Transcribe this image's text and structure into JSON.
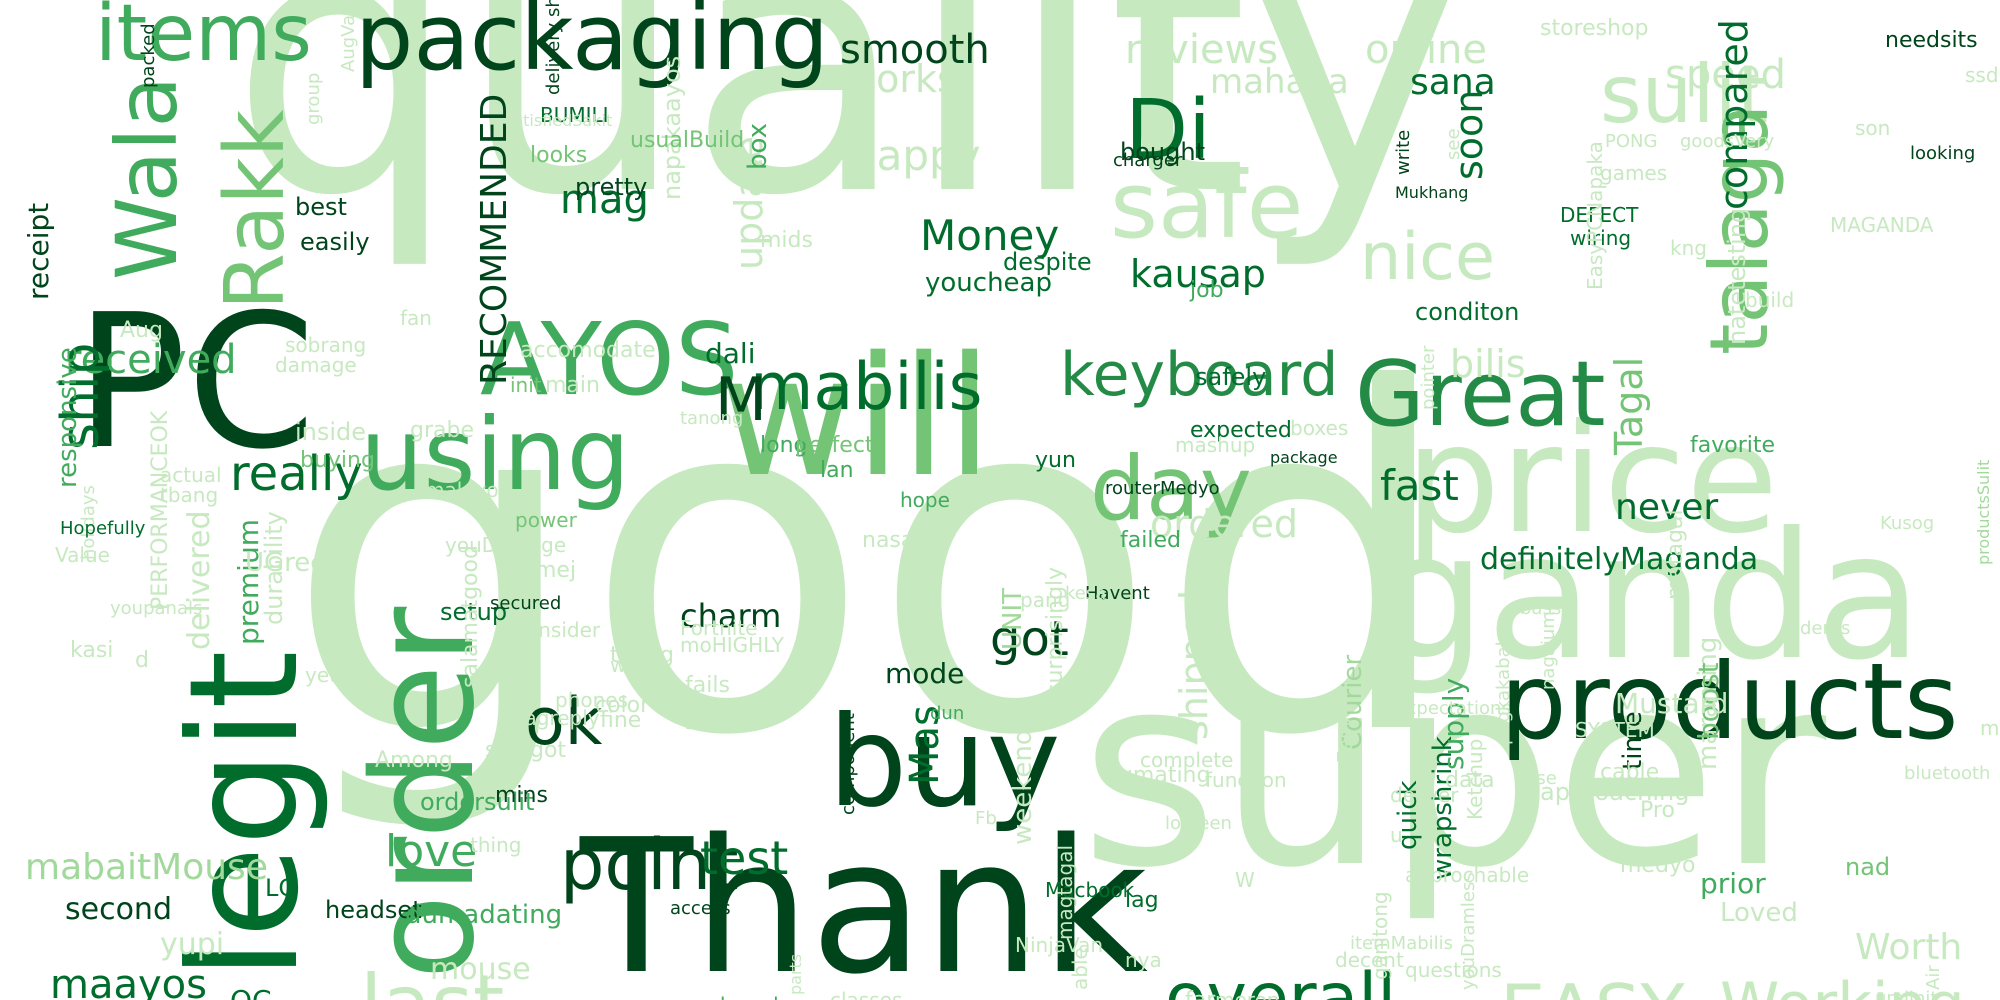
{
  "palette": {
    "background": "#ffffff",
    "shades": [
      "#00441b",
      "#006d2c",
      "#238b45",
      "#41ab5d",
      "#74c476",
      "#a1d99b",
      "#c7e9c0",
      "#e5f5e0"
    ]
  },
  "words": [
    {
      "text": "quality",
      "rotated": false
    },
    {
      "text": "good",
      "rotated": false
    },
    {
      "text": "super",
      "rotated": false
    },
    {
      "text": "Thank",
      "rotated": false
    },
    {
      "text": "will",
      "rotated": false
    },
    {
      "text": "price",
      "rotated": false
    },
    {
      "text": "ganda",
      "rotated": false
    },
    {
      "text": "PC",
      "rotated": false
    },
    {
      "text": "legit",
      "rotated": true
    },
    {
      "text": "order",
      "rotated": true
    },
    {
      "text": "products",
      "rotated": false
    },
    {
      "text": "buy",
      "rotated": false
    },
    {
      "text": "packaging",
      "rotated": false
    },
    {
      "text": "items",
      "rotated": false
    },
    {
      "text": "Wala",
      "rotated": true
    },
    {
      "text": "Rakk",
      "rotated": true
    },
    {
      "text": "using",
      "rotated": false
    },
    {
      "text": "AYOS",
      "rotated": false
    },
    {
      "text": "Great",
      "rotated": false
    },
    {
      "text": "day",
      "rotated": false
    },
    {
      "text": "safe",
      "rotated": false
    },
    {
      "text": "sulit",
      "rotated": false
    },
    {
      "text": "talaga",
      "rotated": true
    },
    {
      "text": "Di",
      "rotated": false
    },
    {
      "text": "point",
      "rotated": false
    },
    {
      "text": "ok",
      "rotated": false
    },
    {
      "text": "mabilis",
      "rotated": false
    },
    {
      "text": "keyboard",
      "rotated": false
    },
    {
      "text": "overall",
      "rotated": false
    },
    {
      "text": "EASY",
      "rotated": false
    },
    {
      "text": "Working",
      "rotated": false
    },
    {
      "text": "nice",
      "rotated": false
    },
    {
      "text": "last",
      "rotated": false
    },
    {
      "text": "smooth",
      "rotated": false
    },
    {
      "text": "reviews",
      "rotated": false
    },
    {
      "text": "online",
      "rotated": false
    },
    {
      "text": "speed",
      "rotated": false
    },
    {
      "text": "mahaba",
      "rotated": false
    },
    {
      "text": "sana",
      "rotated": false
    },
    {
      "text": "works",
      "rotated": false
    },
    {
      "text": "happy",
      "rotated": false
    },
    {
      "text": "Money",
      "rotated": false
    },
    {
      "text": "kausap",
      "rotated": false
    },
    {
      "text": "really",
      "rotated": false
    },
    {
      "text": "received",
      "rotated": false
    },
    {
      "text": "ship",
      "rotated": true
    },
    {
      "text": "RECOMMENDED",
      "rotated": true
    },
    {
      "text": "M",
      "rotated": false
    },
    {
      "text": "mag",
      "rotated": false
    },
    {
      "text": "test",
      "rotated": false
    },
    {
      "text": "love",
      "rotated": false
    },
    {
      "text": "maayos",
      "rotated": false
    },
    {
      "text": "mouse",
      "rotated": false
    },
    {
      "text": "Mas",
      "rotated": true
    },
    {
      "text": "got",
      "rotated": false
    },
    {
      "text": "charm",
      "rotated": false
    },
    {
      "text": "fast",
      "rotated": false
    },
    {
      "text": "bilis",
      "rotated": false
    },
    {
      "text": "never",
      "rotated": false
    },
    {
      "text": "Tagal",
      "rotated": true
    },
    {
      "text": "compared",
      "rotated": true
    },
    {
      "text": "soon",
      "rotated": true
    },
    {
      "text": "update",
      "rotated": true
    },
    {
      "text": "shipped",
      "rotated": true
    },
    {
      "text": "ordered",
      "rotated": false
    },
    {
      "text": "definitelyMaganda",
      "rotated": false
    },
    {
      "text": "Worth",
      "rotated": false
    },
    {
      "text": "time",
      "rotated": true
    },
    {
      "text": "mabaitMouse",
      "rotated": false
    },
    {
      "text": "receipt",
      "rotated": true
    },
    {
      "text": "delivered",
      "rotated": true
    },
    {
      "text": "premium",
      "rotated": true
    },
    {
      "text": "responsive",
      "rotated": true
    },
    {
      "text": "second",
      "rotated": false
    },
    {
      "text": "yupi",
      "rotated": false
    },
    {
      "text": "LG",
      "rotated": false
    },
    {
      "text": "headset",
      "rotated": false
    },
    {
      "text": "QC",
      "rotated": false
    },
    {
      "text": "dumadating",
      "rotated": false
    },
    {
      "text": "ordersulit",
      "rotated": false
    },
    {
      "text": "setup",
      "rotated": false
    },
    {
      "text": "mode",
      "rotated": false
    },
    {
      "text": "weekend",
      "rotated": true
    },
    {
      "text": "job",
      "rotated": false
    },
    {
      "text": "safely",
      "rotated": false
    },
    {
      "text": "expected",
      "rotated": false
    },
    {
      "text": "conditon",
      "rotated": false
    },
    {
      "text": "bought",
      "rotated": false
    },
    {
      "text": "youcheap",
      "rotated": false
    },
    {
      "text": "despite",
      "rotated": false
    },
    {
      "text": "box",
      "rotated": true
    },
    {
      "text": "pretty",
      "rotated": false
    },
    {
      "text": "best",
      "rotated": false
    },
    {
      "text": "easily",
      "rotated": false
    },
    {
      "text": "BUMILI",
      "rotated": false
    },
    {
      "text": "dali",
      "rotated": false
    },
    {
      "text": "long",
      "rotated": false
    },
    {
      "text": "perfect",
      "rotated": false
    },
    {
      "text": "buying",
      "rotated": false
    },
    {
      "text": "lan",
      "rotated": false
    },
    {
      "text": "yun",
      "rotated": false
    },
    {
      "text": "hope",
      "rotated": false
    },
    {
      "text": "power",
      "rotated": false
    },
    {
      "text": "Courier",
      "rotated": true
    },
    {
      "text": "Fortnite",
      "rotated": false
    },
    {
      "text": "moHIGHLY",
      "rotated": false
    },
    {
      "text": "tlga",
      "rotated": false
    },
    {
      "text": "fails",
      "rotated": false
    },
    {
      "text": "failed",
      "rotated": false
    },
    {
      "text": "favorite",
      "rotated": false
    },
    {
      "text": "Kusog",
      "rotated": false
    },
    {
      "text": "DEFECT",
      "rotated": false
    },
    {
      "text": "wiring",
      "rotated": false
    },
    {
      "text": "kng",
      "rotated": false
    },
    {
      "text": "build",
      "rotated": false
    },
    {
      "text": "MAGANDA",
      "rotated": false
    },
    {
      "text": "needsits",
      "rotated": false
    },
    {
      "text": "ssd",
      "rotated": false
    },
    {
      "text": "looking",
      "rotated": false
    },
    {
      "text": "son",
      "rotated": false
    },
    {
      "text": "storeshop",
      "rotated": false
    },
    {
      "text": "games",
      "rotated": false
    },
    {
      "text": "PONG",
      "rotated": false
    },
    {
      "text": "goodsVery",
      "rotated": false
    },
    {
      "text": "ulo",
      "rotated": false
    },
    {
      "text": "Mukhang",
      "rotated": false
    },
    {
      "text": "write",
      "rotated": true
    },
    {
      "text": "see",
      "rotated": true
    },
    {
      "text": "charger",
      "rotated": false
    },
    {
      "text": "routerMedyo",
      "rotated": false
    },
    {
      "text": "package",
      "rotated": false
    },
    {
      "text": "Havent",
      "rotated": false
    },
    {
      "text": "secured",
      "rotated": false
    },
    {
      "text": "dun",
      "rotated": false
    },
    {
      "text": "surprisingly",
      "rotated": true
    },
    {
      "text": "UNIT",
      "rotated": true
    },
    {
      "text": "quick",
      "rotated": true
    },
    {
      "text": "natetesting",
      "rotated": true
    },
    {
      "text": "wrapshrink",
      "rotated": true
    },
    {
      "text": "supply",
      "rotated": true
    },
    {
      "text": "data",
      "rotated": false
    },
    {
      "text": "approaching",
      "rotated": false
    },
    {
      "text": "nad",
      "rotated": false
    },
    {
      "text": "maraming",
      "rotated": true
    },
    {
      "text": "prior",
      "rotated": false
    },
    {
      "text": "Loved",
      "rotated": false
    },
    {
      "text": "medyo",
      "rotated": false
    },
    {
      "text": "boost",
      "rotated": true
    },
    {
      "text": "Mustard",
      "rotated": false
    },
    {
      "text": "mumurahin",
      "rotated": false
    },
    {
      "text": "productsSulit",
      "rotated": true
    },
    {
      "text": "Air",
      "rotated": true
    },
    {
      "text": "umiinit",
      "rotated": false
    },
    {
      "text": "bluetooth",
      "rotated": false
    },
    {
      "text": "nagajump",
      "rotated": true
    },
    {
      "text": "pagkakabalot",
      "rotated": true
    },
    {
      "text": "matagal",
      "rotated": true
    },
    {
      "text": "use",
      "rotated": false
    },
    {
      "text": "bass",
      "rotated": false
    },
    {
      "text": "dents",
      "rotated": false
    },
    {
      "text": "itemMabilis",
      "rotated": false
    },
    {
      "text": "youDramless",
      "rotated": true
    },
    {
      "text": "areaEasy",
      "rotated": true
    },
    {
      "text": "Ketchup",
      "rotated": true
    },
    {
      "text": "ganitong",
      "rotated": true
    },
    {
      "text": "meron",
      "rotated": false
    },
    {
      "text": "lolBeen",
      "rotated": false
    },
    {
      "text": "nya",
      "rotated": false
    },
    {
      "text": "Fb",
      "rotated": false
    },
    {
      "text": "lag",
      "rotated": false
    },
    {
      "text": "NinjaVan",
      "rotated": false
    },
    {
      "text": "Macbook",
      "rotated": false
    },
    {
      "text": "able",
      "rotated": true
    },
    {
      "text": "far",
      "rotated": false
    },
    {
      "text": "W",
      "rotated": false
    },
    {
      "text": "function",
      "rotated": false
    },
    {
      "text": "magtagal",
      "rotated": true
    },
    {
      "text": "component",
      "rotated": true
    },
    {
      "text": "access",
      "rotated": false
    },
    {
      "text": "classes",
      "rotated": false
    },
    {
      "text": "parts",
      "rotated": true
    },
    {
      "text": "brands",
      "rotated": false
    },
    {
      "text": "decent",
      "rotated": false
    },
    {
      "text": "complete",
      "rotated": false
    },
    {
      "text": "dumating",
      "rotated": false
    },
    {
      "text": "mins",
      "rotated": false
    },
    {
      "text": "fine",
      "rotated": false
    },
    {
      "text": "color",
      "rotated": false
    },
    {
      "text": "sinagot",
      "rotated": false
    },
    {
      "text": "salamatgood",
      "rotated": true
    },
    {
      "text": "magreply",
      "rotated": false
    },
    {
      "text": "thing",
      "rotated": false
    },
    {
      "text": "phones",
      "rotated": false
    },
    {
      "text": "yet",
      "rotated": false
    },
    {
      "text": "holidays",
      "rotated": true
    },
    {
      "text": "wewe",
      "rotated": false
    },
    {
      "text": "consider",
      "rotated": false
    },
    {
      "text": "si",
      "rotated": false
    },
    {
      "text": "SYSTEM",
      "rotated": false
    },
    {
      "text": "cable",
      "rotated": false
    },
    {
      "text": "Pro",
      "rotated": false
    },
    {
      "text": "questions",
      "rotated": false
    },
    {
      "text": "approchable",
      "rotated": false
    },
    {
      "text": "deliver",
      "rotated": false
    },
    {
      "text": "expectations",
      "rotated": false
    },
    {
      "text": "Among",
      "rotated": false
    },
    {
      "text": "Hopefully",
      "rotated": false
    },
    {
      "text": "youpanals",
      "rotated": false
    },
    {
      "text": "PERFORMANCEOK",
      "rotated": true
    },
    {
      "text": "durability",
      "rotated": true
    },
    {
      "text": "UGreen",
      "rotated": false
    },
    {
      "text": "kasi",
      "rotated": false
    },
    {
      "text": "u",
      "rotated": false
    },
    {
      "text": "d",
      "rotated": false
    },
    {
      "text": "Value",
      "rotated": false
    },
    {
      "text": "main",
      "rotated": false
    },
    {
      "text": "tunog",
      "rotated": false
    },
    {
      "text": "mashup",
      "rotated": false
    },
    {
      "text": "matibay",
      "rotated": false
    },
    {
      "text": "inside",
      "rotated": false
    },
    {
      "text": "grabe",
      "rotated": false
    },
    {
      "text": "malayo",
      "rotated": false
    },
    {
      "text": "sobrang",
      "rotated": false
    },
    {
      "text": "damage",
      "rotated": false
    },
    {
      "text": "fan",
      "rotated": false
    },
    {
      "text": "init",
      "rotated": false
    },
    {
      "text": "accomodate",
      "rotated": false
    },
    {
      "text": "napakaayos",
      "rotated": true
    },
    {
      "text": "delivery shop",
      "rotated": true
    },
    {
      "text": "satisfiedSakit",
      "rotated": false
    },
    {
      "text": "usualBuild",
      "rotated": false
    },
    {
      "text": "looks",
      "rotated": false
    },
    {
      "text": "mids",
      "rotated": false
    },
    {
      "text": "nasa",
      "rotated": false
    },
    {
      "text": "mej",
      "rotated": false
    },
    {
      "text": "boxes",
      "rotated": false
    },
    {
      "text": "EasyPCNapaka",
      "rotated": true
    },
    {
      "text": "pointer",
      "rotated": true
    },
    {
      "text": "pang",
      "rotated": false
    },
    {
      "text": "kesa",
      "rotated": false
    },
    {
      "text": "youDamage",
      "rotated": false
    },
    {
      "text": "actual",
      "rotated": false
    },
    {
      "text": "tbang",
      "rotated": false
    },
    {
      "text": "tanong",
      "rotated": false
    },
    {
      "text": "AugValue",
      "rotated": true
    },
    {
      "text": "Aug",
      "rotated": false
    },
    {
      "text": "packed",
      "rotated": true
    },
    {
      "text": "group",
      "rotated": true
    }
  ]
}
